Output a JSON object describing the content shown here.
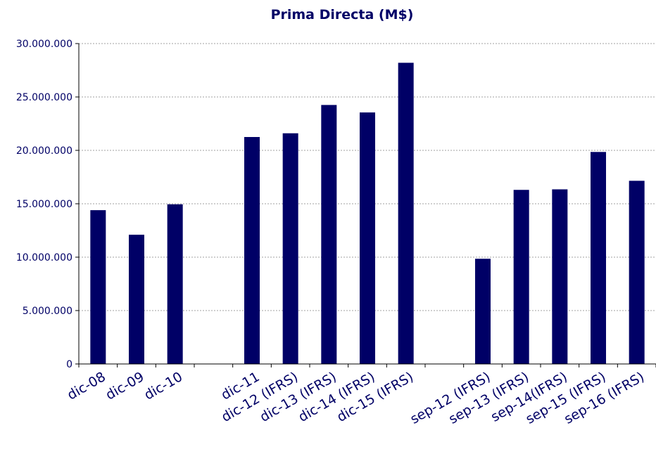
{
  "chart_data": {
    "type": "bar",
    "title": "Prima Directa (M$)",
    "xlabel": "",
    "ylabel": "",
    "ylim": [
      0,
      30000000
    ],
    "yticks": [
      0,
      5000000,
      10000000,
      15000000,
      20000000,
      25000000,
      30000000
    ],
    "ytick_labels": [
      "0",
      "5.000.000",
      "10.000.000",
      "15.000.000",
      "20.000.000",
      "25.000.000",
      "30.000.000"
    ],
    "categories": [
      "dic-08",
      "dic-09",
      "dic-10",
      "",
      "dic-11",
      "dic-12 (IFRS)",
      "dic-13 (IFRS)",
      "dic-14 (IFRS)",
      "dic-15 (IFRS)",
      "",
      "sep-12 (IFRS)",
      "sep-13 (IFRS)",
      "sep-14(IFRS)",
      "sep-15 (IFRS)",
      "sep-16 (IFRS)"
    ],
    "values": [
      14400000,
      12100000,
      14950000,
      null,
      21250000,
      21600000,
      24250000,
      23550000,
      28200000,
      null,
      9850000,
      16300000,
      16350000,
      19850000,
      17150000
    ],
    "grid": true,
    "legend": "none",
    "colors": {
      "bar": "#000066",
      "text": "#000066",
      "grid": "#a0a0a0",
      "axis": "#000000"
    }
  }
}
